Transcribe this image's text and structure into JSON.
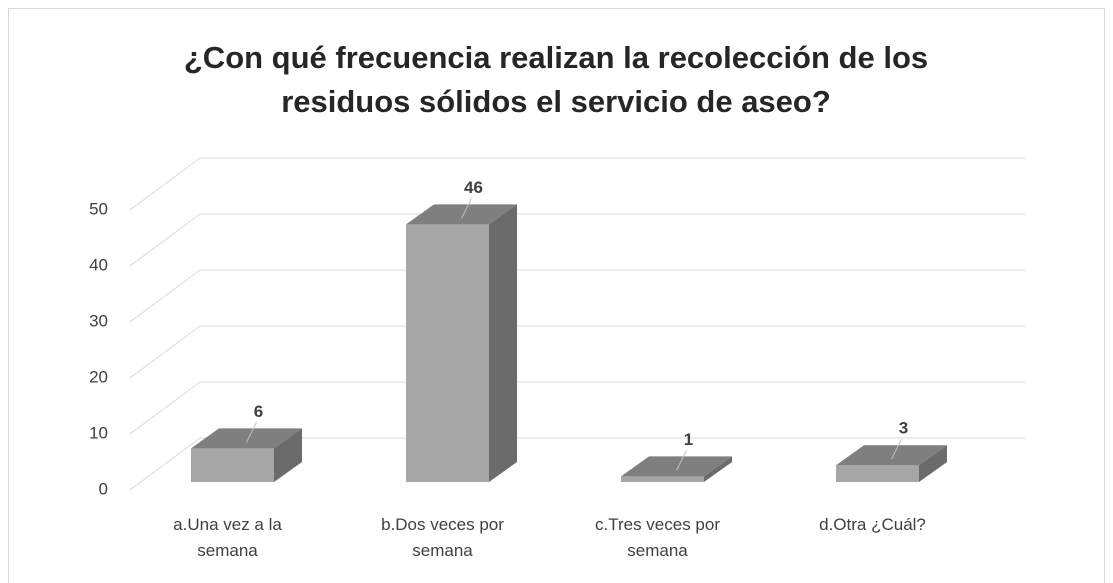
{
  "chart_data": {
    "type": "bar3d",
    "title": "¿Con qué frecuencia realizan la recolección de los residuos sólidos el servicio de aseo?",
    "categories": [
      "a.Una vez a la semana",
      "b.Dos veces por semana",
      "c.Tres veces por semana",
      "d.Otra ¿Cuál?"
    ],
    "values": [
      6,
      46,
      1,
      3
    ],
    "color": "#a6a6a6",
    "ylim": [
      0,
      50
    ],
    "yticks": [
      0,
      10,
      20,
      30,
      40,
      50
    ],
    "grid": true
  }
}
